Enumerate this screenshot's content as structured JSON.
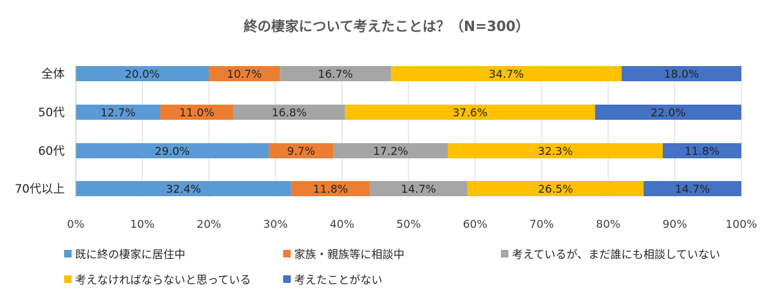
{
  "chart_data": {
    "type": "bar",
    "orientation": "horizontal",
    "stacked": "percent",
    "title": "終の棲家について考えたことは？（N=300）",
    "categories": [
      "全体",
      "50代",
      "60代",
      "70代以上"
    ],
    "series": [
      {
        "name": "既に終の棲家に居住中",
        "color": "#5B9BD5",
        "values": [
          20.0,
          12.7,
          29.0,
          32.4
        ],
        "labels": [
          "20.0%",
          "12.7%",
          "29.0%",
          "32.4%"
        ]
      },
      {
        "name": "家族・親族等に相談中",
        "color": "#ED7D31",
        "values": [
          10.7,
          11.0,
          9.7,
          11.8
        ],
        "labels": [
          "10.7%",
          "11.0%",
          "9.7%",
          "11.8%"
        ]
      },
      {
        "name": "考えているが、まだ誰にも相談していない",
        "color": "#A5A5A5",
        "values": [
          16.7,
          16.8,
          17.2,
          14.7
        ],
        "labels": [
          "16.7%",
          "16.8%",
          "17.2%",
          "14.7%"
        ]
      },
      {
        "name": "考えなければならないと思っている",
        "color": "#FFC000",
        "values": [
          34.7,
          37.6,
          32.3,
          26.5
        ],
        "labels": [
          "34.7%",
          "37.6%",
          "32.3%",
          "26.5%"
        ]
      },
      {
        "name": "考えたことがない",
        "color": "#4472C4",
        "values": [
          18.0,
          22.0,
          11.8,
          14.7
        ],
        "labels": [
          "18.0%",
          "22.0%",
          "11.8%",
          "14.7%"
        ]
      }
    ],
    "xlim": [
      0,
      100
    ],
    "xticks": [
      "0%",
      "10%",
      "20%",
      "30%",
      "40%",
      "50%",
      "60%",
      "70%",
      "80%",
      "90%",
      "100%"
    ],
    "grid": "vertical",
    "legend": "bottom",
    "xlabel": "",
    "ylabel": ""
  }
}
